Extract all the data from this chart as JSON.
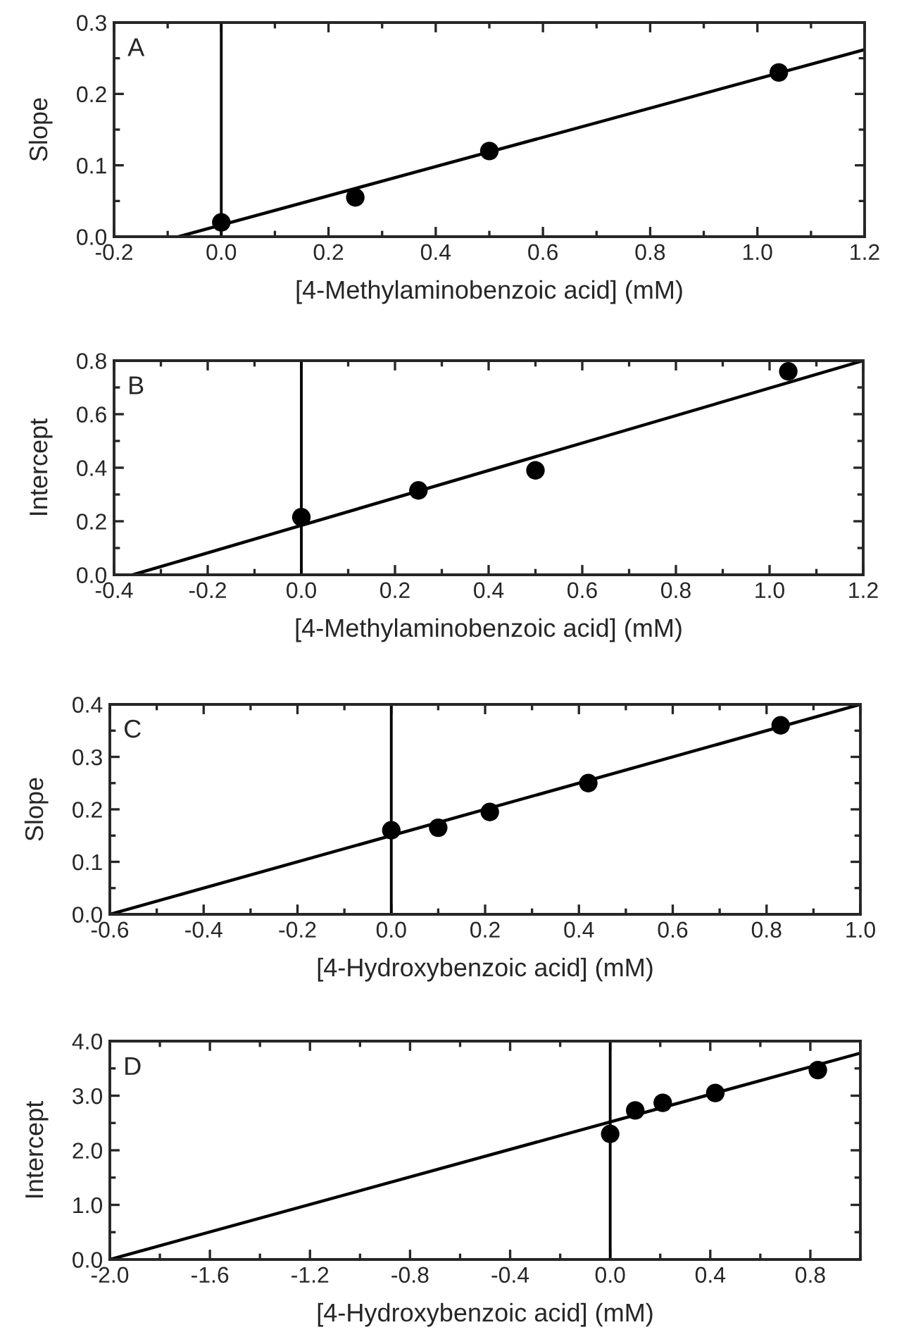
{
  "chart_data": [
    {
      "type": "scatter",
      "xlabel": "[4-Methylaminobenzoic acid] (mM)",
      "ylabel": "Slope",
      "annotations": [
        "A"
      ],
      "series": [
        {
          "color": "#000000",
          "marker": "circle",
          "x": [
            0.0,
            0.25,
            0.5,
            1.04
          ],
          "values": [
            0.02,
            0.055,
            0.12,
            0.23
          ]
        },
        {
          "type": "line",
          "marker": "none",
          "color": "#000000",
          "x": [
            -0.08,
            1.2
          ],
          "values": [
            0.0,
            0.262
          ]
        }
      ],
      "xlim": [
        -0.2,
        1.2
      ],
      "xticks": [
        -0.2,
        {
          "value": 0,
          "label": "0.0"
        },
        0.2,
        0.4,
        0.6,
        0.8,
        {
          "value": 1,
          "label": "1.0"
        },
        1.2
      ],
      "ylim": [
        0.0,
        0.3
      ],
      "yticks": [
        {
          "value": 0,
          "label": "0.0"
        },
        0.1,
        0.2,
        0.3
      ],
      "ref_lines": [
        {
          "axis": "x",
          "value": 0,
          "color": "#000000"
        }
      ],
      "grid": false,
      "legend": false
    },
    {
      "type": "scatter",
      "xlabel": "[4-Methylaminobenzoic acid] (mM)",
      "ylabel": "Intercept",
      "annotations": [
        "B"
      ],
      "series": [
        {
          "color": "#000000",
          "marker": "circle",
          "x": [
            0.0,
            0.25,
            0.5,
            1.04
          ],
          "values": [
            0.215,
            0.315,
            0.39,
            0.76
          ]
        },
        {
          "type": "line",
          "marker": "none",
          "color": "#000000",
          "x": [
            -0.36,
            1.2
          ],
          "values": [
            0.0,
            0.8
          ]
        }
      ],
      "xlim": [
        -0.4,
        1.2
      ],
      "xticks": [
        -0.4,
        -0.2,
        {
          "value": 0,
          "label": "0.0"
        },
        0.2,
        0.4,
        0.6,
        0.8,
        {
          "value": 1,
          "label": "1.0"
        },
        1.2
      ],
      "ylim": [
        0.0,
        0.8
      ],
      "yticks": [
        {
          "value": 0,
          "label": "0.0"
        },
        0.2,
        0.4,
        0.6,
        0.8
      ],
      "ref_lines": [
        {
          "axis": "x",
          "value": 0,
          "color": "#000000"
        }
      ],
      "grid": false,
      "legend": false
    },
    {
      "type": "scatter",
      "xlabel": "[4-Hydroxybenzoic acid] (mM)",
      "ylabel": "Slope",
      "annotations": [
        "C"
      ],
      "series": [
        {
          "color": "#000000",
          "marker": "circle",
          "x": [
            0.0,
            0.1,
            0.21,
            0.42,
            0.83
          ],
          "values": [
            0.16,
            0.165,
            0.195,
            0.25,
            0.36
          ]
        },
        {
          "type": "line",
          "marker": "none",
          "color": "#000000",
          "x": [
            -0.6,
            1.0
          ],
          "values": [
            0.0,
            0.4
          ]
        }
      ],
      "xlim": [
        -0.6,
        1.0
      ],
      "xticks": [
        -0.6,
        -0.4,
        -0.2,
        {
          "value": 0,
          "label": "0.0"
        },
        0.2,
        0.4,
        0.6,
        0.8,
        {
          "value": 1,
          "label": "1.0"
        }
      ],
      "ylim": [
        0.0,
        0.4
      ],
      "yticks": [
        {
          "value": 0,
          "label": "0.0"
        },
        0.1,
        0.2,
        0.3,
        0.4
      ],
      "ref_lines": [
        {
          "axis": "x",
          "value": 0,
          "color": "#000000"
        }
      ],
      "grid": false,
      "legend": false
    },
    {
      "type": "scatter",
      "xlabel": "[4-Hydroxybenzoic acid] (mM)",
      "ylabel": "Intercept",
      "annotations": [
        "D"
      ],
      "series": [
        {
          "color": "#000000",
          "marker": "circle",
          "x": [
            0.0,
            0.1,
            0.21,
            0.42,
            0.83
          ],
          "values": [
            2.3,
            2.73,
            2.87,
            3.05,
            3.47
          ]
        },
        {
          "type": "line",
          "marker": "none",
          "color": "#000000",
          "x": [
            -2.0,
            1.0
          ],
          "values": [
            0.0,
            3.78
          ]
        }
      ],
      "xlim": [
        -2.0,
        1.0
      ],
      "xticks": [
        {
          "value": -2,
          "label": "-2.0"
        },
        -1.6,
        -1.2,
        -0.8,
        -0.4,
        {
          "value": 0,
          "label": "0.0"
        },
        0.4,
        0.8
      ],
      "ylim": [
        0.0,
        4.0
      ],
      "yticks": [
        {
          "value": 0,
          "label": "0.0"
        },
        {
          "value": 1,
          "label": "1.0"
        },
        {
          "value": 2,
          "label": "2.0"
        },
        {
          "value": 3,
          "label": "3.0"
        },
        {
          "value": 4,
          "label": "4.0"
        }
      ],
      "ref_lines": [
        {
          "axis": "x",
          "value": 0,
          "color": "#000000"
        }
      ],
      "grid": false,
      "legend": false
    }
  ]
}
